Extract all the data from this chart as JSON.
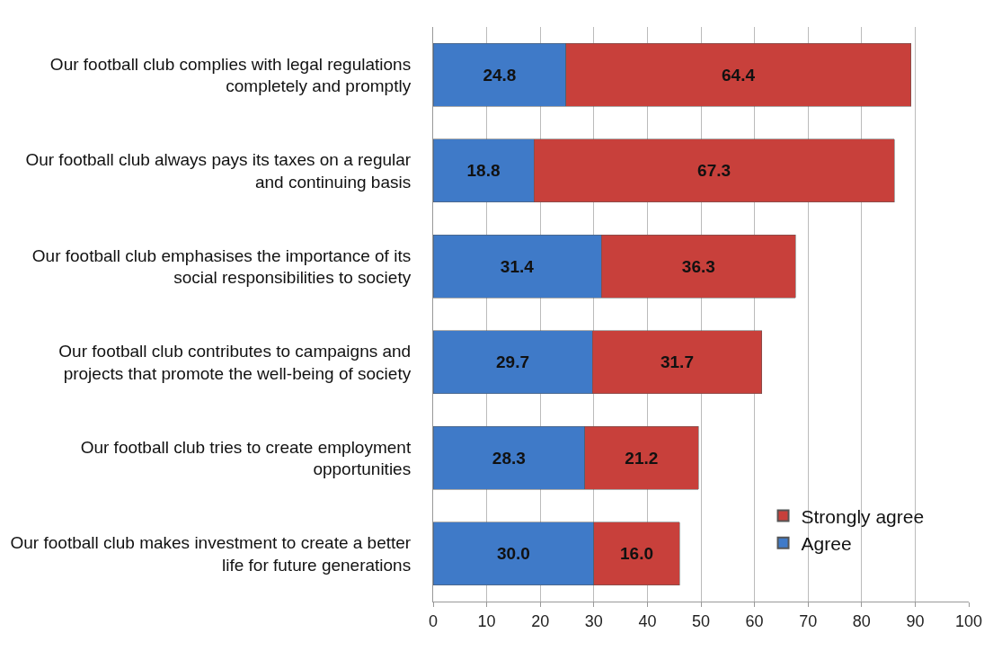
{
  "chart_data": {
    "type": "bar",
    "orientation": "horizontal",
    "stacked": true,
    "categories": [
      "Our football club complies with legal regulations completely and promptly",
      "Our football club always pays its taxes on a regular and continuing basis",
      "Our football club emphasises the importance of its social responsibilities to society",
      "Our football club contributes to campaigns and projects that promote the well-being of society",
      "Our football club tries to create employment opportunities",
      "Our football club makes investment to create a better life for future generations"
    ],
    "series": [
      {
        "name": "Agree",
        "color": "#3f7ac8",
        "values": [
          24.8,
          18.8,
          31.4,
          29.7,
          28.3,
          30.0
        ],
        "value_labels": [
          "24.8",
          "18.8",
          "31.4",
          "29.7",
          "28.3",
          "30.0"
        ]
      },
      {
        "name": "Strongly agree",
        "color": "#c8403b",
        "values": [
          64.4,
          67.3,
          36.3,
          31.7,
          21.2,
          16.0
        ],
        "value_labels": [
          "64.4",
          "67.3",
          "36.3",
          "31.7",
          "21.2",
          "16.0"
        ]
      }
    ],
    "xlim": [
      0,
      100
    ],
    "xticks": [
      0,
      10,
      20,
      30,
      40,
      50,
      60,
      70,
      80,
      90,
      100
    ],
    "grid": "x",
    "legend": "bottom right"
  }
}
